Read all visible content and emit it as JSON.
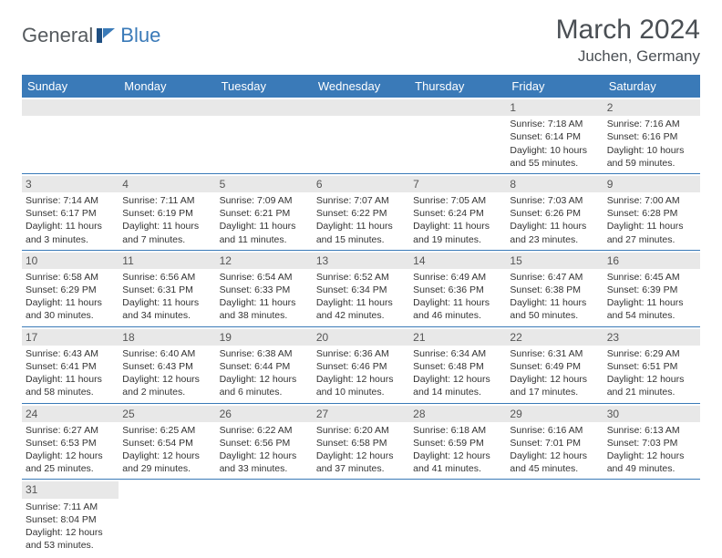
{
  "logo": {
    "part1": "General",
    "part2": "Blue"
  },
  "title": "March 2024",
  "location": "Juchen, Germany",
  "colors": {
    "header_bg": "#3a7ab8",
    "header_text": "#ffffff",
    "daynum_bg": "#e8e8e8",
    "week_border": "#3a7ab8",
    "text": "#333333",
    "logo_gray": "#555a5e",
    "logo_blue": "#3a7ab8"
  },
  "day_names": [
    "Sunday",
    "Monday",
    "Tuesday",
    "Wednesday",
    "Thursday",
    "Friday",
    "Saturday"
  ],
  "weeks": [
    [
      {
        "empty": true
      },
      {
        "empty": true
      },
      {
        "empty": true
      },
      {
        "empty": true
      },
      {
        "empty": true
      },
      {
        "day": "1",
        "sunrise": "Sunrise: 7:18 AM",
        "sunset": "Sunset: 6:14 PM",
        "daylight": "Daylight: 10 hours and 55 minutes."
      },
      {
        "day": "2",
        "sunrise": "Sunrise: 7:16 AM",
        "sunset": "Sunset: 6:16 PM",
        "daylight": "Daylight: 10 hours and 59 minutes."
      }
    ],
    [
      {
        "day": "3",
        "sunrise": "Sunrise: 7:14 AM",
        "sunset": "Sunset: 6:17 PM",
        "daylight": "Daylight: 11 hours and 3 minutes."
      },
      {
        "day": "4",
        "sunrise": "Sunrise: 7:11 AM",
        "sunset": "Sunset: 6:19 PM",
        "daylight": "Daylight: 11 hours and 7 minutes."
      },
      {
        "day": "5",
        "sunrise": "Sunrise: 7:09 AM",
        "sunset": "Sunset: 6:21 PM",
        "daylight": "Daylight: 11 hours and 11 minutes."
      },
      {
        "day": "6",
        "sunrise": "Sunrise: 7:07 AM",
        "sunset": "Sunset: 6:22 PM",
        "daylight": "Daylight: 11 hours and 15 minutes."
      },
      {
        "day": "7",
        "sunrise": "Sunrise: 7:05 AM",
        "sunset": "Sunset: 6:24 PM",
        "daylight": "Daylight: 11 hours and 19 minutes."
      },
      {
        "day": "8",
        "sunrise": "Sunrise: 7:03 AM",
        "sunset": "Sunset: 6:26 PM",
        "daylight": "Daylight: 11 hours and 23 minutes."
      },
      {
        "day": "9",
        "sunrise": "Sunrise: 7:00 AM",
        "sunset": "Sunset: 6:28 PM",
        "daylight": "Daylight: 11 hours and 27 minutes."
      }
    ],
    [
      {
        "day": "10",
        "sunrise": "Sunrise: 6:58 AM",
        "sunset": "Sunset: 6:29 PM",
        "daylight": "Daylight: 11 hours and 30 minutes."
      },
      {
        "day": "11",
        "sunrise": "Sunrise: 6:56 AM",
        "sunset": "Sunset: 6:31 PM",
        "daylight": "Daylight: 11 hours and 34 minutes."
      },
      {
        "day": "12",
        "sunrise": "Sunrise: 6:54 AM",
        "sunset": "Sunset: 6:33 PM",
        "daylight": "Daylight: 11 hours and 38 minutes."
      },
      {
        "day": "13",
        "sunrise": "Sunrise: 6:52 AM",
        "sunset": "Sunset: 6:34 PM",
        "daylight": "Daylight: 11 hours and 42 minutes."
      },
      {
        "day": "14",
        "sunrise": "Sunrise: 6:49 AM",
        "sunset": "Sunset: 6:36 PM",
        "daylight": "Daylight: 11 hours and 46 minutes."
      },
      {
        "day": "15",
        "sunrise": "Sunrise: 6:47 AM",
        "sunset": "Sunset: 6:38 PM",
        "daylight": "Daylight: 11 hours and 50 minutes."
      },
      {
        "day": "16",
        "sunrise": "Sunrise: 6:45 AM",
        "sunset": "Sunset: 6:39 PM",
        "daylight": "Daylight: 11 hours and 54 minutes."
      }
    ],
    [
      {
        "day": "17",
        "sunrise": "Sunrise: 6:43 AM",
        "sunset": "Sunset: 6:41 PM",
        "daylight": "Daylight: 11 hours and 58 minutes."
      },
      {
        "day": "18",
        "sunrise": "Sunrise: 6:40 AM",
        "sunset": "Sunset: 6:43 PM",
        "daylight": "Daylight: 12 hours and 2 minutes."
      },
      {
        "day": "19",
        "sunrise": "Sunrise: 6:38 AM",
        "sunset": "Sunset: 6:44 PM",
        "daylight": "Daylight: 12 hours and 6 minutes."
      },
      {
        "day": "20",
        "sunrise": "Sunrise: 6:36 AM",
        "sunset": "Sunset: 6:46 PM",
        "daylight": "Daylight: 12 hours and 10 minutes."
      },
      {
        "day": "21",
        "sunrise": "Sunrise: 6:34 AM",
        "sunset": "Sunset: 6:48 PM",
        "daylight": "Daylight: 12 hours and 14 minutes."
      },
      {
        "day": "22",
        "sunrise": "Sunrise: 6:31 AM",
        "sunset": "Sunset: 6:49 PM",
        "daylight": "Daylight: 12 hours and 17 minutes."
      },
      {
        "day": "23",
        "sunrise": "Sunrise: 6:29 AM",
        "sunset": "Sunset: 6:51 PM",
        "daylight": "Daylight: 12 hours and 21 minutes."
      }
    ],
    [
      {
        "day": "24",
        "sunrise": "Sunrise: 6:27 AM",
        "sunset": "Sunset: 6:53 PM",
        "daylight": "Daylight: 12 hours and 25 minutes."
      },
      {
        "day": "25",
        "sunrise": "Sunrise: 6:25 AM",
        "sunset": "Sunset: 6:54 PM",
        "daylight": "Daylight: 12 hours and 29 minutes."
      },
      {
        "day": "26",
        "sunrise": "Sunrise: 6:22 AM",
        "sunset": "Sunset: 6:56 PM",
        "daylight": "Daylight: 12 hours and 33 minutes."
      },
      {
        "day": "27",
        "sunrise": "Sunrise: 6:20 AM",
        "sunset": "Sunset: 6:58 PM",
        "daylight": "Daylight: 12 hours and 37 minutes."
      },
      {
        "day": "28",
        "sunrise": "Sunrise: 6:18 AM",
        "sunset": "Sunset: 6:59 PM",
        "daylight": "Daylight: 12 hours and 41 minutes."
      },
      {
        "day": "29",
        "sunrise": "Sunrise: 6:16 AM",
        "sunset": "Sunset: 7:01 PM",
        "daylight": "Daylight: 12 hours and 45 minutes."
      },
      {
        "day": "30",
        "sunrise": "Sunrise: 6:13 AM",
        "sunset": "Sunset: 7:03 PM",
        "daylight": "Daylight: 12 hours and 49 minutes."
      }
    ],
    [
      {
        "day": "31",
        "sunrise": "Sunrise: 7:11 AM",
        "sunset": "Sunset: 8:04 PM",
        "daylight": "Daylight: 12 hours and 53 minutes."
      },
      {
        "empty": true
      },
      {
        "empty": true
      },
      {
        "empty": true
      },
      {
        "empty": true
      },
      {
        "empty": true
      },
      {
        "empty": true
      }
    ]
  ]
}
